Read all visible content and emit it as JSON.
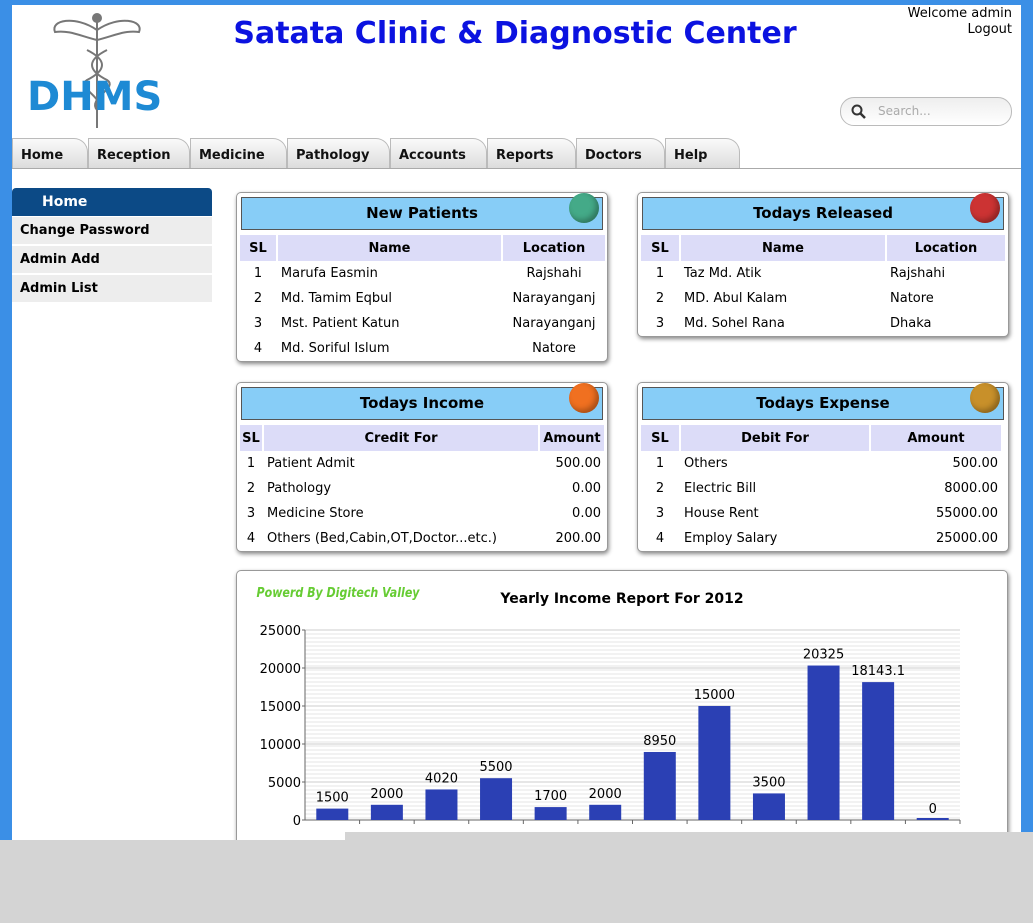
{
  "header": {
    "logo": "DHMS",
    "title": "Satata Clinic & Diagnostic Center",
    "welcome": "Welcome admin",
    "logout": "Logout",
    "search_placeholder": "Search..."
  },
  "nav": [
    "Home",
    "Reception",
    "Medicine",
    "Pathology",
    "Accounts",
    "Reports",
    "Doctors",
    "Help"
  ],
  "sidebar": {
    "title": "Home",
    "items": [
      "Change Password",
      "Admin Add",
      "Admin List"
    ]
  },
  "panels": [
    {
      "title": "New Patients",
      "columns": [
        "SL",
        "Name",
        "Location"
      ],
      "rows": [
        [
          "1",
          "Marufa Easmin",
          "Rajshahi"
        ],
        [
          "2",
          "Md. Tamim Eqbul",
          "Narayanganj"
        ],
        [
          "3",
          "Mst. Patient Katun",
          "Narayanganj"
        ],
        [
          "4",
          "Md. Soriful Islum",
          "Natore"
        ]
      ]
    },
    {
      "title": "Todays Released",
      "columns": [
        "SL",
        "Name",
        "Location"
      ],
      "rows": [
        [
          "1",
          "Taz Md. Atik",
          "Rajshahi"
        ],
        [
          "2",
          "MD. Abul Kalam",
          "Natore"
        ],
        [
          "3",
          "Md. Sohel Rana",
          "Dhaka"
        ]
      ]
    },
    {
      "title": "Todays Income",
      "columns": [
        "SL",
        "Credit For",
        "Amount"
      ],
      "rows": [
        [
          "1",
          "Patient Admit",
          "500.00"
        ],
        [
          "2",
          "Pathology",
          "0.00"
        ],
        [
          "3",
          "Medicine Store",
          "0.00"
        ],
        [
          "4",
          "Others (Bed,Cabin,OT,Doctor...etc.)",
          "200.00"
        ]
      ]
    },
    {
      "title": "Todays Expense",
      "columns": [
        "SL",
        "Debit For",
        "Amount"
      ],
      "rows": [
        [
          "1",
          "Others",
          "500.00"
        ],
        [
          "2",
          "Electric Bill",
          "8000.00"
        ],
        [
          "3",
          "House Rent",
          "55000.00"
        ],
        [
          "4",
          "Employ Salary",
          "25000.00"
        ]
      ]
    }
  ],
  "chart_data": {
    "type": "bar",
    "title": "Yearly Income Report For 2012",
    "watermark": "Powerd By Digitech Valley",
    "categories": [
      null,
      null,
      null,
      null,
      null,
      null,
      null,
      null,
      null,
      null,
      null,
      null
    ],
    "values": [
      1500,
      2000,
      4020,
      5500,
      1700,
      2000,
      8950,
      15000,
      3500,
      20325,
      18143.1,
      0
    ],
    "color": "#2b40b4",
    "ylim": [
      0,
      25000
    ],
    "yticks": [
      0,
      5000,
      10000,
      15000,
      20000,
      25000
    ],
    "grid": true
  }
}
